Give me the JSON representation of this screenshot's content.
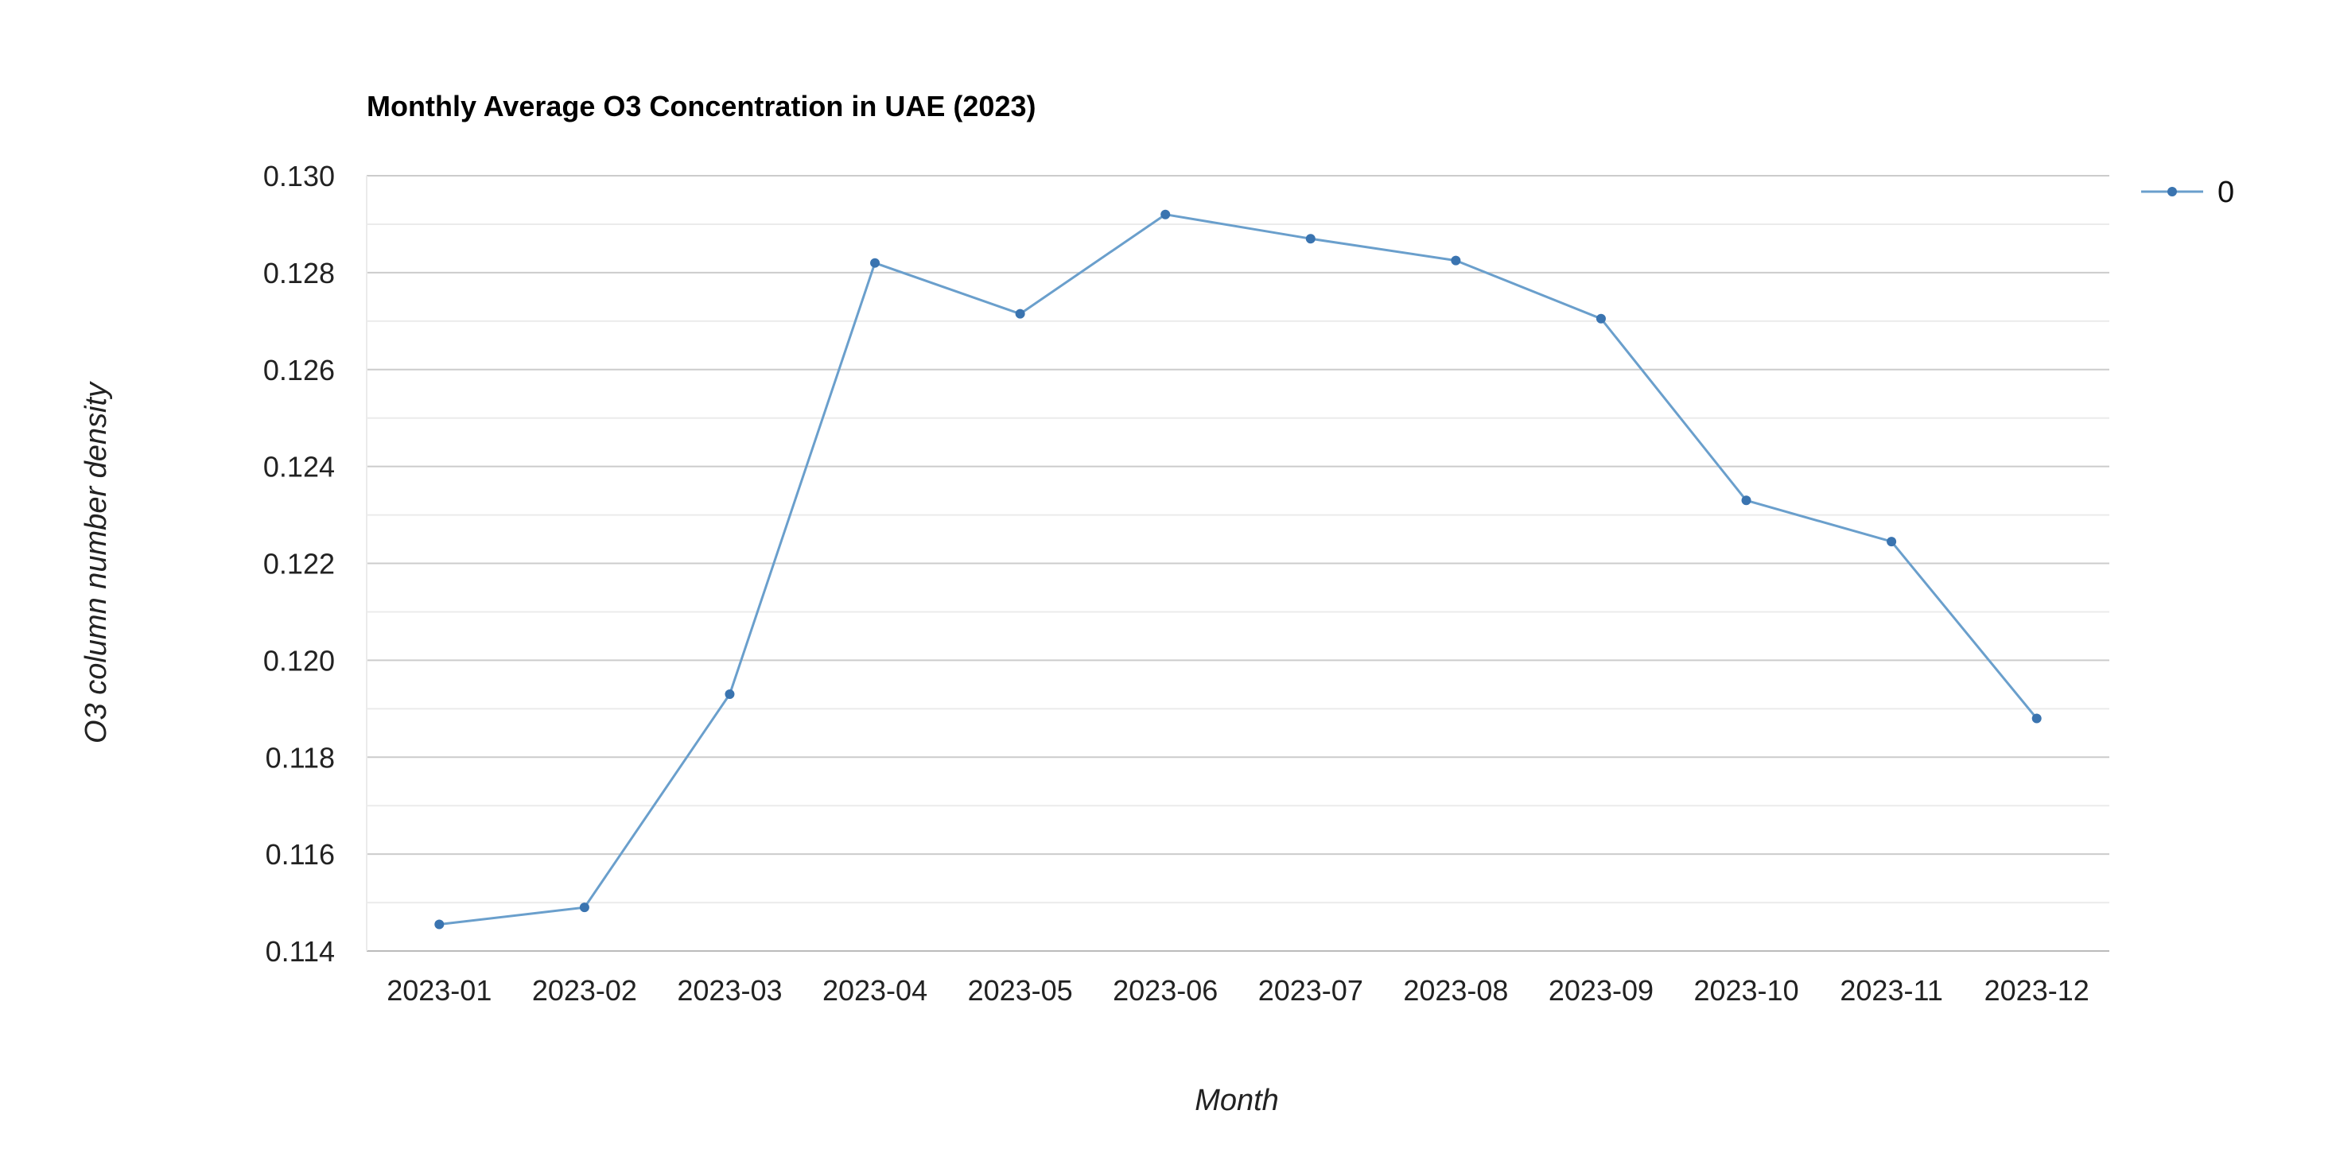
{
  "chart_data": {
    "type": "line",
    "title": "Monthly Average O3 Concentration in UAE (2023)",
    "xlabel": "Month",
    "ylabel": "O3 column number density",
    "categories": [
      "2023-01",
      "2023-02",
      "2023-03",
      "2023-04",
      "2023-05",
      "2023-06",
      "2023-07",
      "2023-08",
      "2023-09",
      "2023-10",
      "2023-11",
      "2023-12"
    ],
    "series": [
      {
        "name": "0",
        "values": [
          0.11455,
          0.1149,
          0.1193,
          0.1282,
          0.12715,
          0.1292,
          0.1287,
          0.12825,
          0.12705,
          0.1233,
          0.12245,
          0.1188
        ]
      }
    ],
    "ylim": [
      0.114,
      0.13
    ],
    "yticks": [
      "0.114",
      "0.116",
      "0.118",
      "0.120",
      "0.122",
      "0.124",
      "0.126",
      "0.128",
      "0.130"
    ],
    "grid": true,
    "legend_position": "top-right",
    "colors": {
      "line": "#6a9fcc",
      "marker": "#3a74b0",
      "grid_major": "#cccccc",
      "grid_minor": "#ebebeb",
      "axis": "#bbbbbb",
      "text": "#222222"
    }
  }
}
